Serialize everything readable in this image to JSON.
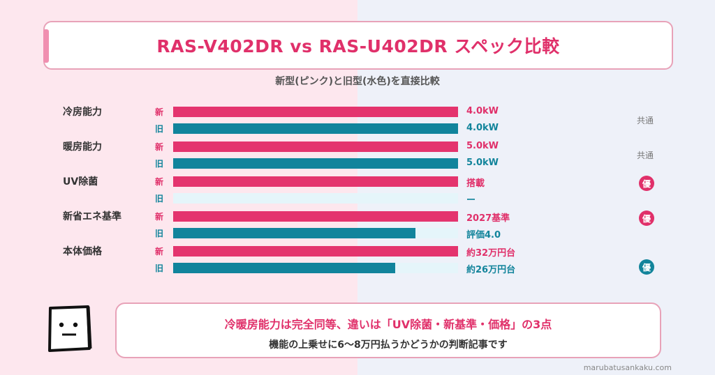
{
  "header": {
    "title": "RAS-V402DR vs RAS-U402DR スペック比較",
    "subtitle": "新型(ピンク)と旧型(水色)を直接比較"
  },
  "chart_data": {
    "type": "bar",
    "orientation": "horizontal",
    "new_tag": "新",
    "old_tag": "旧",
    "series": [
      {
        "key": "new",
        "color": "#e4346e"
      },
      {
        "key": "old",
        "color": "#11849c"
      }
    ],
    "xlim": [
      0,
      100
    ],
    "categories": [
      {
        "label": "冷房能力",
        "new": {
          "value": 100,
          "label": "4.0kW"
        },
        "old": {
          "value": 100,
          "label": "4.0kW"
        },
        "verdict": "共通",
        "verdict_type": "common"
      },
      {
        "label": "暖房能力",
        "new": {
          "value": 100,
          "label": "5.0kW"
        },
        "old": {
          "value": 100,
          "label": "5.0kW"
        },
        "verdict": "共通",
        "verdict_type": "common"
      },
      {
        "label": "UV除菌",
        "new": {
          "value": 100,
          "label": "搭載"
        },
        "old": {
          "value": 0,
          "label": "ー"
        },
        "verdict": "優",
        "verdict_type": "new"
      },
      {
        "label": "新省エネ基準",
        "new": {
          "value": 100,
          "label": "2027基準"
        },
        "old": {
          "value": 85,
          "label": "評価4.0"
        },
        "verdict": "優",
        "verdict_type": "new"
      },
      {
        "label": "本体価格",
        "new": {
          "value": 100,
          "label": "約32万円台"
        },
        "old": {
          "value": 78,
          "label": "約26万円台"
        },
        "verdict": "優",
        "verdict_type": "old"
      }
    ]
  },
  "note": {
    "main": "冷暖房能力は完全同等、違いは「UV除菌・新基準・価格」の3点",
    "sub": "機能の上乗せに6〜8万円払うかどうかの判断記事です"
  },
  "credit": "marubatusankaku.com"
}
